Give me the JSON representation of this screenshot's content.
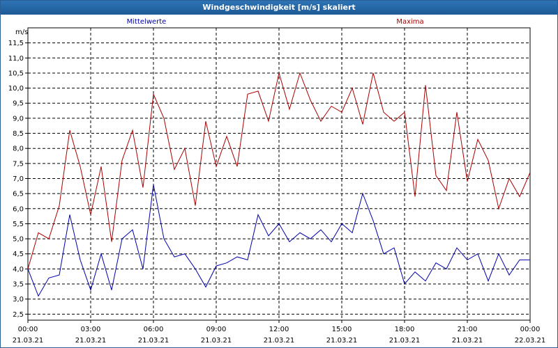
{
  "window": {
    "title": "Windgeschwindigkeit [m/s] skaliert"
  },
  "chart_data": {
    "type": "line",
    "title": "Windgeschwindigkeit [m/s] skaliert",
    "ylabel": "m/s",
    "xlabel": "",
    "ylim": [
      2.3,
      12.0
    ],
    "xlim": [
      0,
      24
    ],
    "grid": true,
    "x_ticks": [
      {
        "t": 0,
        "time": "00:00",
        "date": "21.03.21"
      },
      {
        "t": 3,
        "time": "03:00",
        "date": "21.03.21"
      },
      {
        "t": 6,
        "time": "06:00",
        "date": "21.03.21"
      },
      {
        "t": 9,
        "time": "09:00",
        "date": "21.03.21"
      },
      {
        "t": 12,
        "time": "12:00",
        "date": "21.03.21"
      },
      {
        "t": 15,
        "time": "15:00",
        "date": "21.03.21"
      },
      {
        "t": 18,
        "time": "18:00",
        "date": "21.03.21"
      },
      {
        "t": 21,
        "time": "21:00",
        "date": "21.03.21"
      },
      {
        "t": 24,
        "time": "00:00",
        "date": "22.03.21"
      }
    ],
    "y_ticks": [
      "2.5",
      "3.0",
      "3.5",
      "4.0",
      "4.5",
      "5.0",
      "5.5",
      "6.0",
      "6.5",
      "7.0",
      "7.5",
      "8.0",
      "8.5",
      "9.0",
      "9.5",
      "10.0",
      "10.5",
      "11.0",
      "11.5"
    ],
    "x_hours": [
      0,
      0.5,
      1,
      1.5,
      2,
      2.5,
      3,
      3.5,
      4,
      4.5,
      5,
      5.5,
      6,
      6.5,
      7,
      7.5,
      8,
      8.5,
      9,
      9.5,
      10,
      10.5,
      11,
      11.5,
      12,
      12.5,
      13,
      13.5,
      14,
      14.5,
      15,
      15.5,
      16,
      16.5,
      17,
      17.5,
      18,
      18.5,
      19,
      19.5,
      20,
      20.5,
      21,
      21.5,
      22,
      22.5,
      23,
      23.5,
      24
    ],
    "series": [
      {
        "name": "Mittelwerte",
        "color": "#0000aa",
        "values": [
          4.0,
          3.1,
          3.7,
          3.8,
          5.8,
          4.3,
          3.3,
          4.5,
          3.3,
          5.0,
          5.3,
          4.0,
          6.8,
          5.0,
          4.4,
          4.5,
          4.0,
          3.4,
          4.1,
          4.2,
          4.4,
          4.3,
          5.8,
          5.1,
          5.5,
          4.9,
          5.2,
          5.0,
          5.3,
          4.9,
          5.5,
          5.2,
          6.5,
          5.6,
          4.5,
          4.7,
          3.5,
          3.9,
          3.6,
          4.2,
          4.0,
          4.7,
          4.3,
          4.5,
          3.6,
          4.5,
          3.8,
          4.3,
          4.3
        ]
      },
      {
        "name": "Maxima",
        "color": "#aa0000",
        "values": [
          4.0,
          5.2,
          5.0,
          6.1,
          8.6,
          7.4,
          5.8,
          7.4,
          4.9,
          7.6,
          8.6,
          6.7,
          9.8,
          9.0,
          7.3,
          8.0,
          6.1,
          8.9,
          7.4,
          8.4,
          7.4,
          9.8,
          9.9,
          8.9,
          10.5,
          9.3,
          10.5,
          9.6,
          8.9,
          9.4,
          9.2,
          10.0,
          8.8,
          10.5,
          9.2,
          8.9,
          9.2,
          6.4,
          10.1,
          7.1,
          6.6,
          9.2,
          6.9,
          8.3,
          7.6,
          6.0,
          7.0,
          6.4,
          7.2
        ]
      }
    ]
  }
}
